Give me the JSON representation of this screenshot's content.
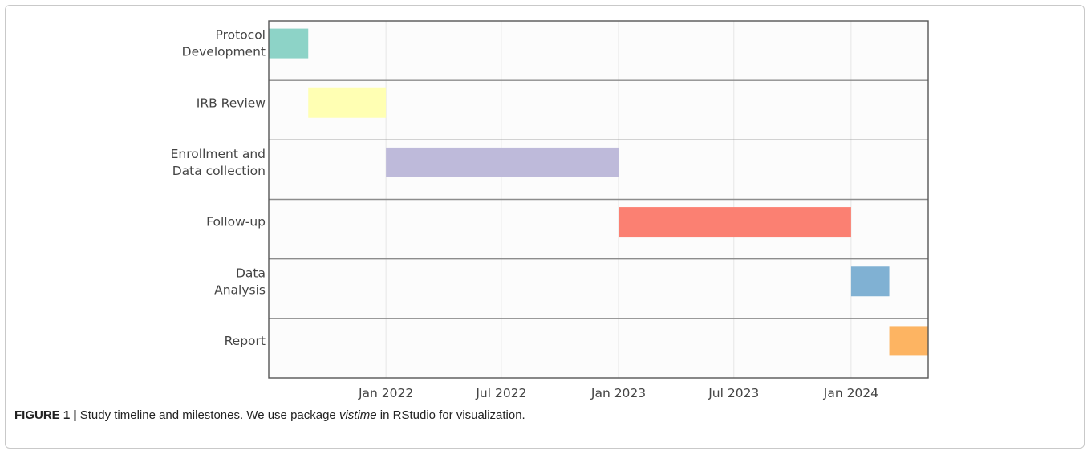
{
  "chart_data": {
    "type": "gantt",
    "events": [
      {
        "label": [
          "Protocol",
          "Development"
        ],
        "start": "2021-07-01",
        "end": "2021-09-01",
        "color": "#8DD3C7"
      },
      {
        "label": [
          "IRB Review"
        ],
        "start": "2021-09-01",
        "end": "2022-01-01",
        "color": "#FFFFB3"
      },
      {
        "label": [
          "Enrollment and",
          "Data collection"
        ],
        "start": "2022-01-01",
        "end": "2023-01-01",
        "color": "#BEBADA"
      },
      {
        "label": [
          "Follow-up"
        ],
        "start": "2023-01-01",
        "end": "2024-01-01",
        "color": "#FB8072"
      },
      {
        "label": [
          "Data",
          "Analysis"
        ],
        "start": "2024-01-01",
        "end": "2024-03-01",
        "color": "#80B1D3"
      },
      {
        "label": [
          "Report"
        ],
        "start": "2024-03-01",
        "end": "2024-05-01",
        "color": "#FDB462"
      }
    ],
    "x_range": [
      "2021-07-01",
      "2024-05-01"
    ],
    "x_ticks": [
      {
        "date": "2022-01-01",
        "label": "Jan 2022"
      },
      {
        "date": "2022-07-01",
        "label": "Jul 2022"
      },
      {
        "date": "2023-01-01",
        "label": "Jan 2023"
      },
      {
        "date": "2023-07-01",
        "label": "Jul 2023"
      },
      {
        "date": "2024-01-01",
        "label": "Jan 2024"
      }
    ],
    "grid": true
  },
  "caption": {
    "figure_label": "FIGURE 1 |",
    "text_before": " Study timeline and milestones. We use package ",
    "package_name": "vistime",
    "text_after": " in RStudio for visualization."
  }
}
